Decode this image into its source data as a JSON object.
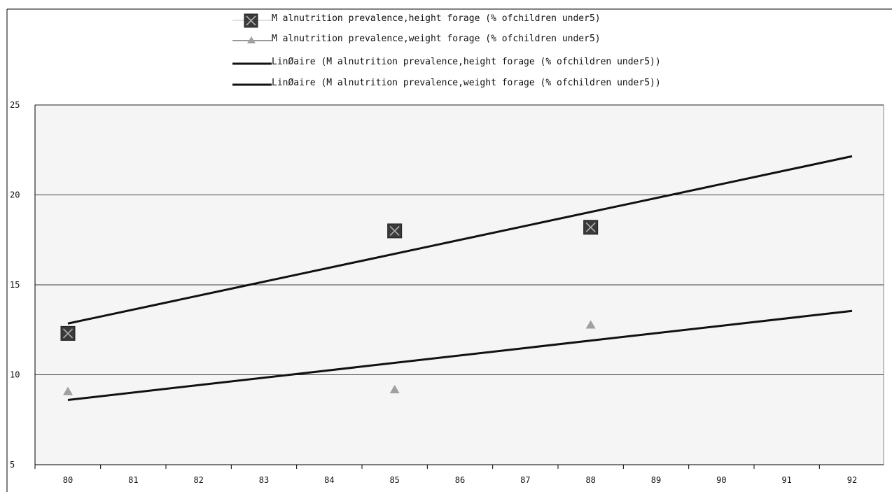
{
  "chart_data": {
    "type": "scatter",
    "title": "",
    "xlabel": "",
    "ylabel": "",
    "xlim": [
      80,
      92
    ],
    "ylim": [
      5,
      25
    ],
    "x_ticks": [
      80,
      81,
      82,
      83,
      84,
      85,
      86,
      87,
      88,
      89,
      90,
      91,
      92
    ],
    "y_ticks": [
      5,
      10,
      15,
      20,
      25
    ],
    "grid": "horizontal",
    "legend_position": "top",
    "plot_background": "#f5f5f5",
    "series": [
      {
        "name": "M alnutrition prevalence,height forage (% ofchildren under5)",
        "marker": "x-square",
        "color": "#3a3a3a",
        "x": [
          80,
          85,
          88
        ],
        "y": [
          12.3,
          18.0,
          18.2
        ]
      },
      {
        "name": "M alnutrition prevalence,weight forage (% ofchildren under5)",
        "marker": "triangle",
        "color": "#a0a0a0",
        "x": [
          80,
          85,
          88
        ],
        "y": [
          9.1,
          9.2,
          12.8
        ]
      }
    ],
    "trendlines": [
      {
        "name": "LinØaire (M alnutrition prevalence,height forage (% ofchildren under5))",
        "color": "#111111",
        "x": [
          80,
          92
        ],
        "y": [
          12.85,
          22.15
        ]
      },
      {
        "name": "LinØaire (M alnutrition prevalence,weight forage (% ofchildren under5))",
        "color": "#111111",
        "x": [
          80,
          92
        ],
        "y": [
          8.6,
          13.55
        ]
      }
    ]
  }
}
